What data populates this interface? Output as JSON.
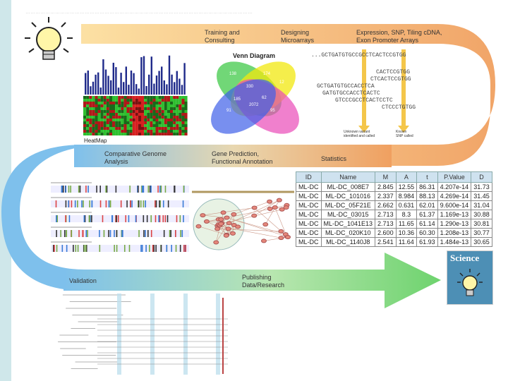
{
  "labels": {
    "training": "Training and\nConsulting",
    "designing": "Designing\nMicroarrays",
    "expression": "Expression, SNP, Tiling cDNA,\nExon Promoter Arrays",
    "venn_title": "Venn Diagram",
    "heatmap": "HeatMap",
    "comparative": "Comparative Genome\nAnalysis",
    "prediction": "Gene Prediction,\nFunctional Annotation",
    "statistics": "Statistics",
    "validation": "Validation",
    "publishing": "Publishing\nData/Research",
    "science": "Science",
    "unknown_snp": "Unknown variant\nidentified and called",
    "known_snp": "Known\nSNP called"
  },
  "venn": {
    "values": [
      "138",
      "174",
      "330",
      "105",
      "97",
      "12",
      "185",
      "62",
      "2072",
      "91",
      "95",
      "80"
    ]
  },
  "sequences": [
    "...GCTGATGTGCCGCCTCACTCCGTGG",
    "CACTCCGTGG",
    "CTCACTCCGTGG",
    "GCTGATGTGCCACCTCA",
    "GATGTGCCACCTCACTC",
    "GTCCCGCCTCACTCCTC",
    "CTCCCTGTGG"
  ],
  "stats_table": {
    "headers": [
      "ID",
      "Name",
      "M",
      "A",
      "t",
      "P.Value",
      "D"
    ],
    "rows": [
      [
        "ML-DC",
        "ML-DC_008E7",
        "2.845",
        "12.55",
        "86.31",
        "4.207e-14",
        "31.73"
      ],
      [
        "ML-DC",
        "ML-DC_101016",
        "2.337",
        "8.984",
        "88.13",
        "4.269e-14",
        "31.45"
      ],
      [
        "ML-DC",
        "ML-DC_05F21E",
        "2.662",
        "0.631",
        "62.01",
        "9.600e-14",
        "31.04"
      ],
      [
        "ML-DC",
        "ML-DC_03015",
        "2.713",
        "8.3",
        "61.37",
        "1.169e-13",
        "30.88"
      ],
      [
        "ML-DC",
        "ML-DC_1041E13",
        "2.713",
        "11.65",
        "61.14",
        "1.290e-13",
        "30.81"
      ],
      [
        "ML-DC",
        "ML-DC_020K10",
        "2.600",
        "10.36",
        "60.30",
        "1.208e-13",
        "30.77"
      ],
      [
        "ML-DC",
        "ML-DC_1140J8",
        "2.541",
        "11.64",
        "61.93",
        "1.484e-13",
        "30.65"
      ]
    ]
  },
  "colors": {
    "arc_top": "#f0a060",
    "arc_left": "#7ec0ec",
    "arrow_bottom": "#6ed36e",
    "venn_green": "#42c94a",
    "venn_yellow": "#f2e80f",
    "venn_pink": "#ea4ab8",
    "venn_blue": "#3f5fe8",
    "bar_blue": "#1f2a8a",
    "science_blue": "#4d8fb5"
  }
}
